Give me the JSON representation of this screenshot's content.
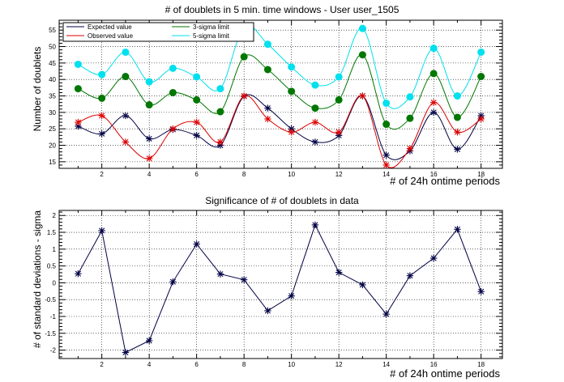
{
  "chart_data": [
    {
      "type": "line",
      "title": "# of doublets in 5 min. time windows - User user_1505",
      "xlabel": "# of 24h ontime periods",
      "ylabel": "Number of doublets",
      "xlim": [
        0.2,
        18.9
      ],
      "ylim": [
        13,
        58
      ],
      "xticks": [
        2,
        4,
        6,
        8,
        10,
        12,
        14,
        16,
        18
      ],
      "yticks": [
        15,
        20,
        25,
        30,
        35,
        40,
        45,
        50,
        55
      ],
      "grid": true,
      "legend_position": "top-left",
      "x": [
        1,
        2,
        3,
        4,
        5,
        6,
        7,
        8,
        9,
        10,
        11,
        12,
        13,
        14,
        15,
        16,
        17,
        18
      ],
      "series": [
        {
          "name": "Expected value",
          "color": "#000044",
          "marker": "star",
          "values": [
            25.8,
            23.5,
            29.0,
            22.0,
            24.8,
            23.0,
            20.0,
            34.9,
            31.3,
            25.0,
            21.0,
            23.0,
            35.0,
            17.0,
            18.3,
            30.0,
            18.8,
            29.0
          ]
        },
        {
          "name": "Observed value",
          "color": "#dd0000",
          "marker": "star",
          "values": [
            27.0,
            29.0,
            21.0,
            16.0,
            25.0,
            27.0,
            21.0,
            35.0,
            28.0,
            24.0,
            27.0,
            24.0,
            35.0,
            14.0,
            19.0,
            33.0,
            24.0,
            28.0
          ]
        },
        {
          "name": "3-sigma limit",
          "color": "#007700",
          "marker": "circle",
          "values": [
            37.2,
            34.3,
            40.9,
            32.3,
            36.0,
            33.8,
            30.2,
            46.9,
            43.0,
            36.4,
            31.3,
            33.8,
            47.5,
            26.4,
            28.2,
            41.8,
            28.5,
            40.9
          ]
        },
        {
          "name": "5-sigma limit",
          "color": "#00e0ee",
          "marker": "circle",
          "values": [
            44.6,
            41.5,
            48.3,
            39.3,
            43.4,
            40.8,
            37.2,
            56.0,
            50.7,
            43.8,
            38.3,
            40.8,
            55.5,
            32.8,
            34.7,
            49.5,
            35.0,
            48.3
          ]
        }
      ]
    },
    {
      "type": "line",
      "title": "Significance of # of doublets in data",
      "xlabel": "# of 24h ontime periods",
      "ylabel": "# of standard deviations - sigma",
      "xlim": [
        0.2,
        18.9
      ],
      "ylim": [
        -2.25,
        2.15
      ],
      "xticks": [
        2,
        4,
        6,
        8,
        10,
        12,
        14,
        16,
        18
      ],
      "yticks": [
        -2,
        -1.5,
        -1,
        -0.5,
        0,
        0.5,
        1,
        1.5,
        2
      ],
      "grid": true,
      "x": [
        1,
        2,
        3,
        4,
        5,
        6,
        7,
        8,
        9,
        10,
        11,
        12,
        13,
        14,
        15,
        16,
        17,
        18
      ],
      "series": [
        {
          "color": "#000044",
          "marker": "star",
          "values": [
            0.27,
            1.55,
            -2.07,
            -1.72,
            0.03,
            1.15,
            0.26,
            0.09,
            -0.83,
            -0.39,
            1.72,
            0.31,
            -0.06,
            -0.93,
            0.21,
            0.73,
            1.59,
            -0.26
          ]
        }
      ]
    }
  ]
}
